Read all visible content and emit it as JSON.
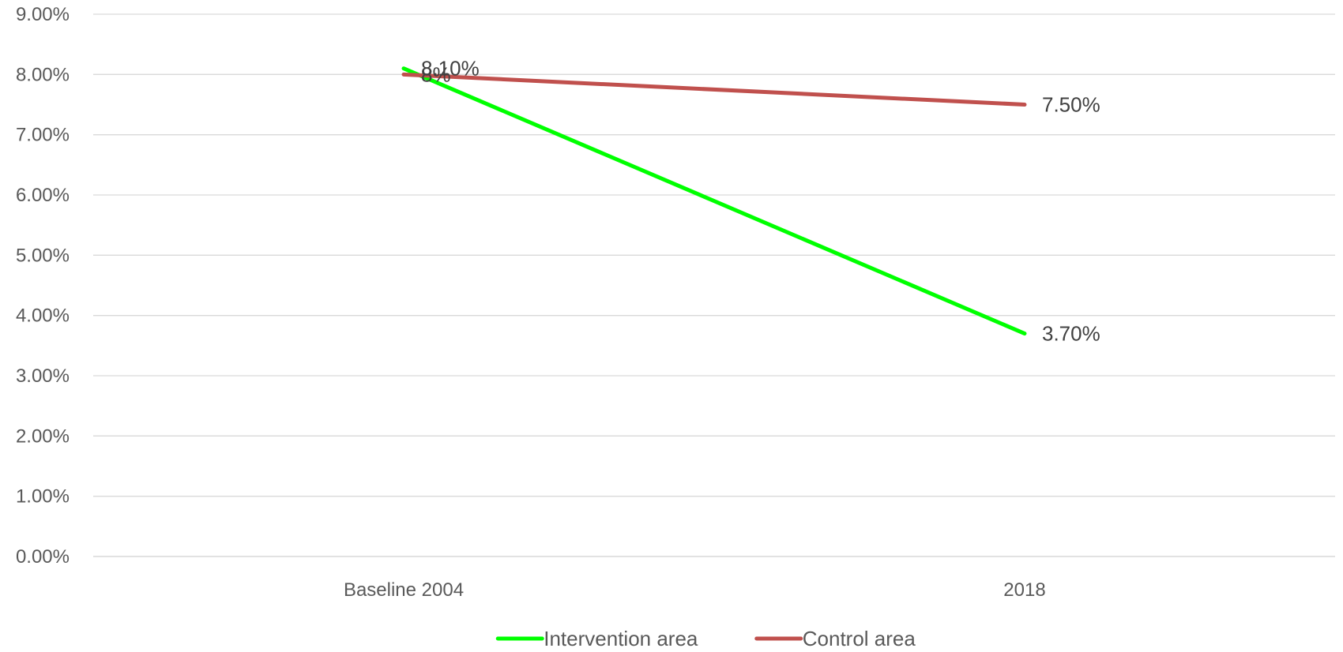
{
  "chart_data": {
    "type": "line",
    "title": "",
    "xlabel": "",
    "ylabel": "",
    "categories": [
      "Baseline 2004",
      "2018"
    ],
    "ylim": [
      0,
      9
    ],
    "yticks": [
      "0.00%",
      "1.00%",
      "2.00%",
      "3.00%",
      "4.00%",
      "5.00%",
      "6.00%",
      "7.00%",
      "8.00%",
      "9.00%"
    ],
    "grid": true,
    "legend_position": "bottom",
    "series": [
      {
        "name": "Intervention area",
        "color": "#00ff00",
        "values": [
          8.1,
          3.7
        ],
        "labels": [
          "8.10%",
          "3.70%"
        ]
      },
      {
        "name": "Control area",
        "color": "#c0504d",
        "values": [
          8.0,
          7.5
        ],
        "labels": [
          "8%",
          "7.50%"
        ]
      }
    ]
  }
}
